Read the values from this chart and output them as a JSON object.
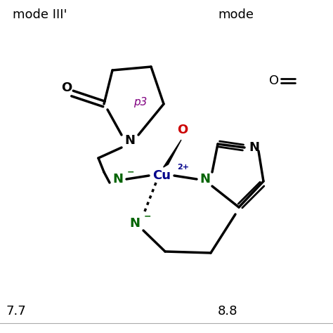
{
  "title_left": "mode III'",
  "title_right": "mode",
  "value_left": "7.7",
  "value_right": "8.8",
  "bg_color": "#ffffff",
  "black": "#000000",
  "green": "#006400",
  "blue": "#00008B",
  "red": "#cc0000",
  "purple": "#800080",
  "figsize": [
    4.74,
    4.74
  ],
  "dpi": 100
}
